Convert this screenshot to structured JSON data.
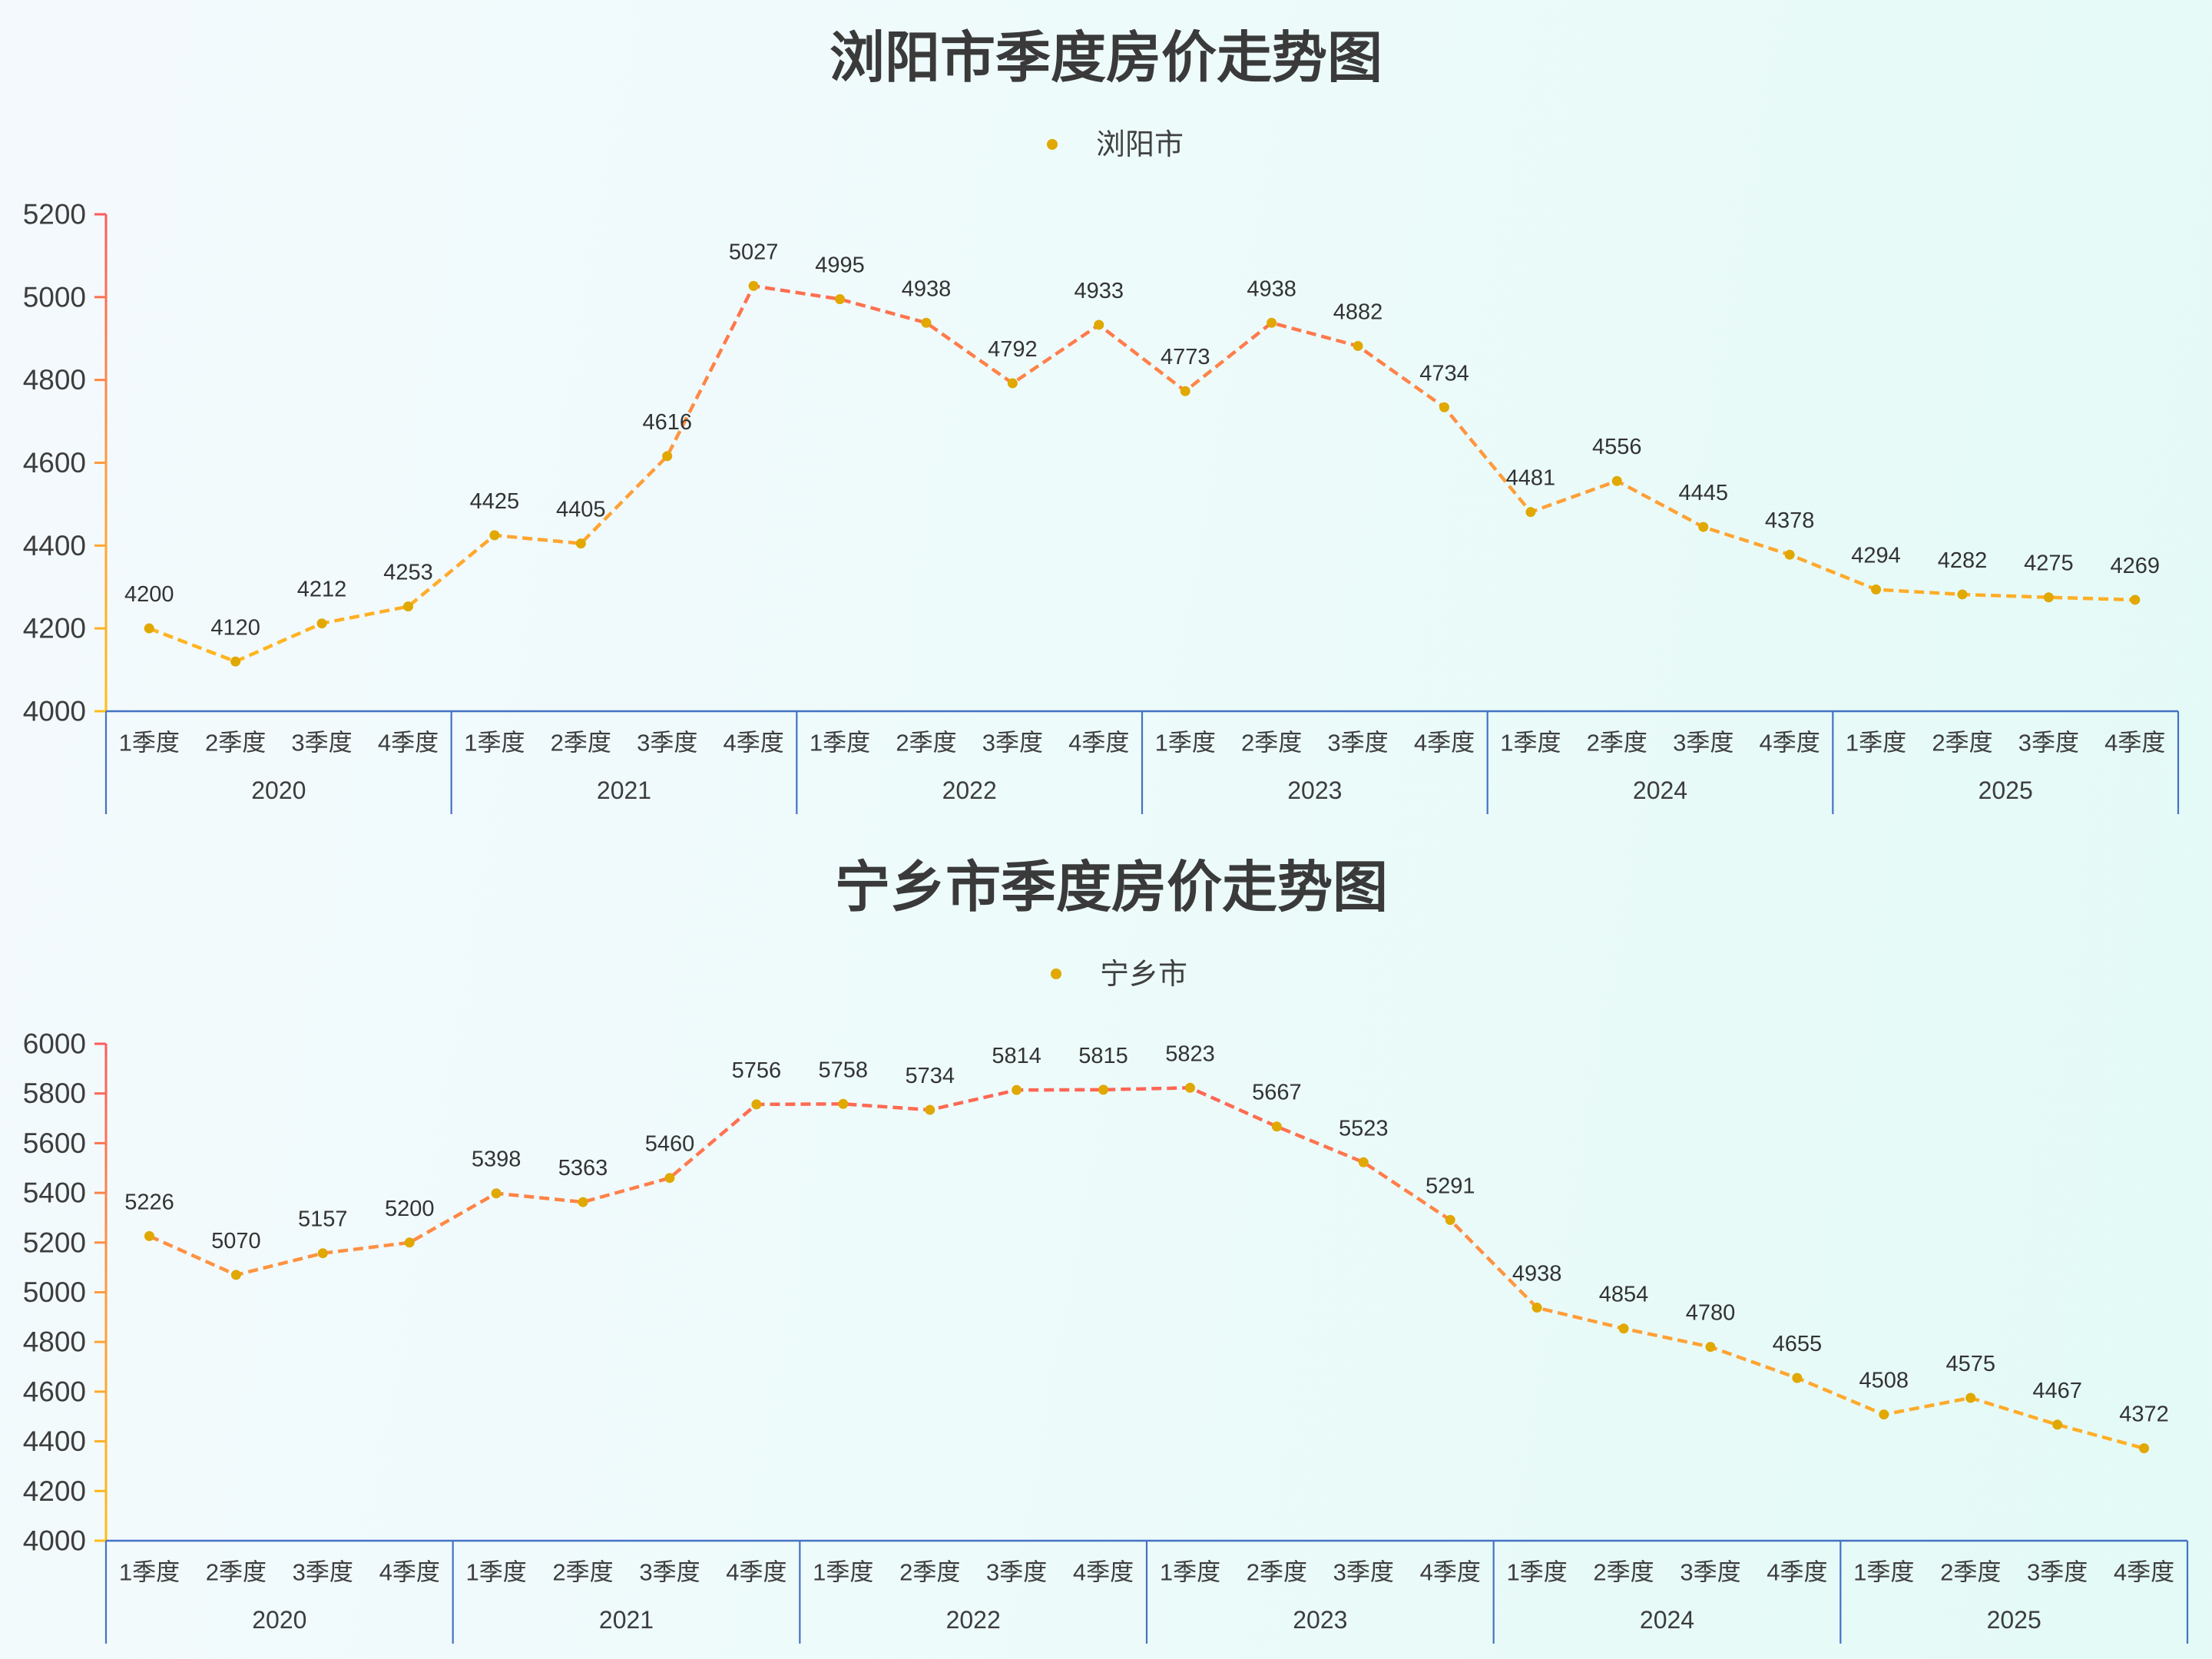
{
  "chart_data": [
    {
      "type": "line",
      "title": "浏阳市季度房价走势图",
      "legend": [
        "浏阳市"
      ],
      "legend_position": "top-center",
      "xlabel": "",
      "ylabel": "",
      "ylim": [
        4000,
        5200
      ],
      "yticks": [
        4000,
        4200,
        4400,
        4600,
        4800,
        5000,
        5200
      ],
      "grid": false,
      "show_data_labels": true,
      "line_style": "dashed",
      "categories": [
        "1季度",
        "2季度",
        "3季度",
        "4季度",
        "1季度",
        "2季度",
        "3季度",
        "4季度",
        "1季度",
        "2季度",
        "3季度",
        "4季度",
        "1季度",
        "2季度",
        "3季度",
        "4季度",
        "1季度",
        "2季度",
        "3季度",
        "4季度",
        "1季度",
        "2季度",
        "3季度",
        "4季度"
      ],
      "category_groups": [
        {
          "label": "2020",
          "span": 4
        },
        {
          "label": "2021",
          "span": 4
        },
        {
          "label": "2022",
          "span": 4
        },
        {
          "label": "2023",
          "span": 4
        },
        {
          "label": "2024",
          "span": 4
        },
        {
          "label": "2025",
          "span": 4
        }
      ],
      "series": [
        {
          "name": "浏阳市",
          "values": [
            4200,
            4120,
            4212,
            4253,
            4425,
            4405,
            4616,
            5027,
            4995,
            4938,
            4792,
            4933,
            4773,
            4938,
            4882,
            4734,
            4481,
            4556,
            4445,
            4378,
            4294,
            4282,
            4275,
            4269
          ]
        }
      ],
      "colors": {
        "high": "#ff5a5a",
        "mid": "#ff9b3d",
        "low": "#ffbd14",
        "point": "#e0a800",
        "axis": "#4472c4",
        "text": "#3d3d3d",
        "label": "#333333"
      }
    },
    {
      "type": "line",
      "title": "宁乡市季度房价走势图",
      "legend": [
        "宁乡市"
      ],
      "legend_position": "top-center",
      "xlabel": "",
      "ylabel": "",
      "ylim": [
        4000,
        6000
      ],
      "yticks": [
        4000,
        4200,
        4400,
        4600,
        4800,
        5000,
        5200,
        5400,
        5600,
        5800,
        6000
      ],
      "grid": false,
      "show_data_labels": true,
      "line_style": "dashed",
      "categories": [
        "1季度",
        "2季度",
        "3季度",
        "4季度",
        "1季度",
        "2季度",
        "3季度",
        "4季度",
        "1季度",
        "2季度",
        "3季度",
        "4季度",
        "1季度",
        "2季度",
        "3季度",
        "4季度",
        "1季度",
        "2季度",
        "3季度",
        "4季度",
        "1季度",
        "2季度",
        "3季度",
        "4季度"
      ],
      "category_groups": [
        {
          "label": "2020",
          "span": 4
        },
        {
          "label": "2021",
          "span": 4
        },
        {
          "label": "2022",
          "span": 4
        },
        {
          "label": "2023",
          "span": 4
        },
        {
          "label": "2024",
          "span": 4
        },
        {
          "label": "2025",
          "span": 4
        }
      ],
      "series": [
        {
          "name": "宁乡市",
          "values": [
            5226,
            5070,
            5157,
            5200,
            5398,
            5363,
            5460,
            5756,
            5758,
            5734,
            5814,
            5815,
            5823,
            5667,
            5523,
            5291,
            4938,
            4854,
            4780,
            4655,
            4508,
            4575,
            4467,
            4372
          ]
        }
      ],
      "colors": {
        "high": "#ff5a5a",
        "mid": "#ff9b3d",
        "low": "#ffbd14",
        "point": "#e0a800",
        "axis": "#4472c4",
        "text": "#3d3d3d",
        "label": "#333333"
      }
    }
  ]
}
